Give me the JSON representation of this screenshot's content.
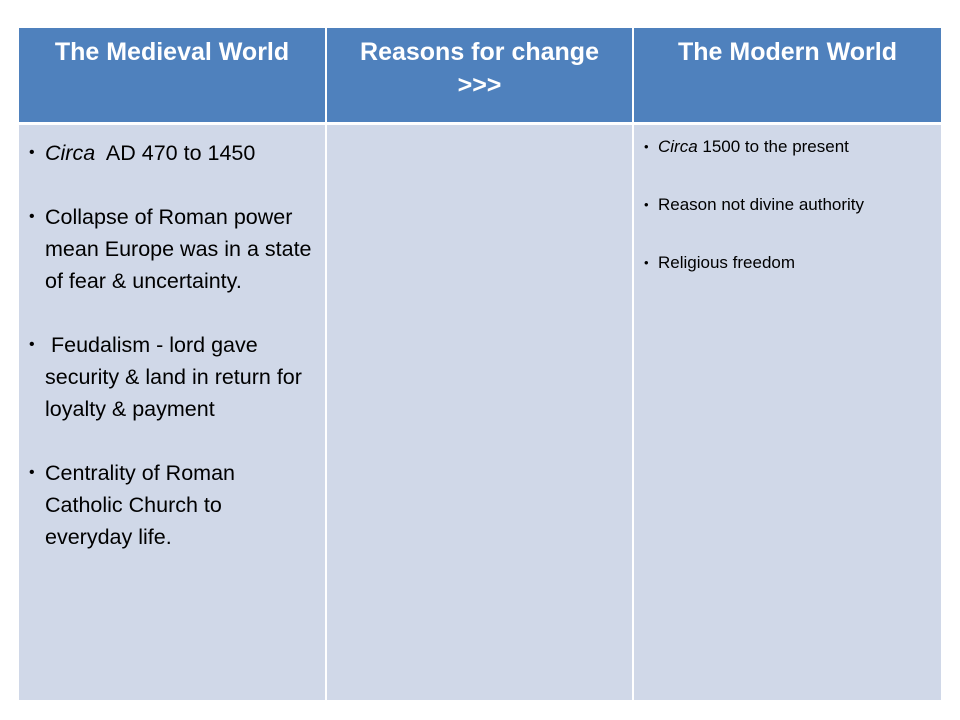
{
  "headers": [
    "The  Medieval World",
    "Reasons for change >>>",
    "The Modern World"
  ],
  "medieval_items": [
    {
      "italic": "Circa",
      "rest": "  AD 470 to 1450"
    },
    {
      "italic": "",
      "rest": "Collapse of Roman power mean Europe was in a state of fear & uncertainty."
    },
    {
      "italic": "",
      "rest": " Feudalism - lord gave security & land in return for loyalty & payment"
    },
    {
      "italic": "",
      "rest": "Centrality of Roman Catholic Church to everyday life."
    }
  ],
  "modern_items": [
    {
      "italic": "Circa",
      "rest": " 1500 to the present"
    },
    {
      "italic": "",
      "rest": "Reason not divine authority"
    },
    {
      "italic": "",
      "rest": "Religious freedom"
    }
  ],
  "colors": {
    "header_bg": "#4f81bd",
    "header_text": "#ffffff",
    "cell_bg": "#d0d8e8",
    "body_text": "#000000"
  }
}
